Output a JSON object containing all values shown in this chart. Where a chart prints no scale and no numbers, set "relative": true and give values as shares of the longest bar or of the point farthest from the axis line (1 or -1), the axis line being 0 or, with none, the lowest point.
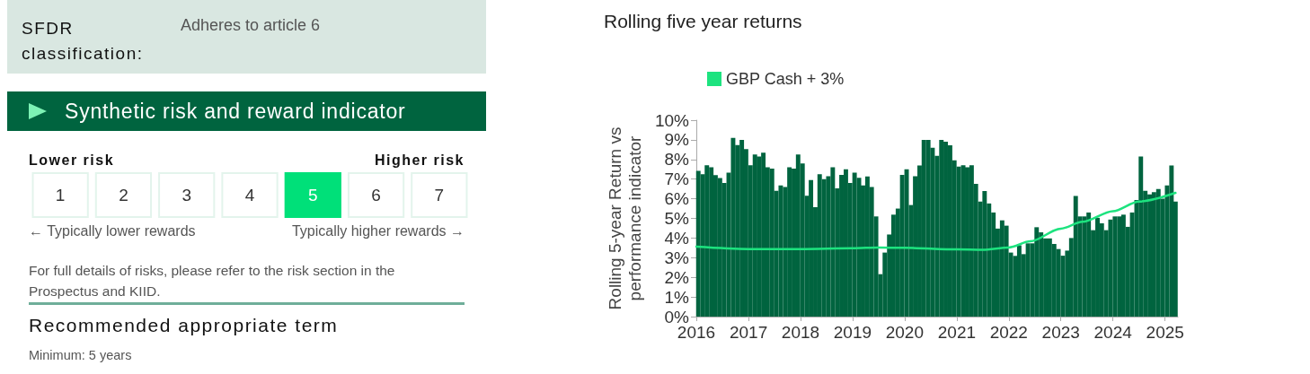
{
  "chart_data": [
    {
      "type": "bar",
      "relative": true,
      "title": "Synthetic risk and reward indicator",
      "categories": [
        "1",
        "2",
        "3",
        "4",
        "5",
        "6",
        "7"
      ],
      "values": [
        1,
        1,
        1,
        1,
        1,
        1,
        1
      ],
      "colors": [
        "#ffffff",
        "#ffffff",
        "#ffffff",
        "#ffffff",
        "#00e079",
        "#ffffff",
        "#ffffff"
      ],
      "annotations": [
        "SFDR classification:",
        "Adheres to article 6",
        "Lower risk",
        "Higher risk",
        "← Typically lower rewards",
        "Typically higher rewards →",
        "For full details of risks, please refer to the risk section in the Prospectus and KIID.",
        "Recommended appropriate term",
        "Minimum: 5 years"
      ]
    },
    {
      "type": "bar",
      "title": "Rolling five year returns",
      "ylabel": "Rolling 5-year Return vs performance indicator",
      "xlim": [
        "2016-01-01",
        "2025-04-01"
      ],
      "xticks": [
        "2016",
        "2017",
        "2018",
        "2019",
        "2020",
        "2021",
        "2022",
        "2023",
        "2024",
        "2025"
      ],
      "ylim": [
        0,
        10
      ],
      "yticks": [
        {
          "value": 0,
          "label": "0%"
        },
        {
          "value": 1,
          "label": "1%"
        },
        {
          "value": 2,
          "label": "2%"
        },
        {
          "value": 3,
          "label": "3%"
        },
        {
          "value": 4,
          "label": "4%"
        },
        {
          "value": 5,
          "label": "5%"
        },
        {
          "value": 6,
          "label": "6%"
        },
        {
          "value": 7,
          "label": "7%"
        },
        {
          "value": 8,
          "label": "8%"
        },
        {
          "value": 9,
          "label": "9%"
        },
        {
          "value": 10,
          "label": "10%"
        }
      ],
      "grid": false,
      "legend": "top",
      "marker": "none",
      "x": [
        "2016-01-15",
        "2016-02-15",
        "2016-03-15",
        "2016-04-15",
        "2016-05-15",
        "2016-06-15",
        "2016-07-15",
        "2016-08-15",
        "2016-09-15",
        "2016-10-15",
        "2016-11-15",
        "2016-12-15",
        "2017-01-15",
        "2017-02-15",
        "2017-03-15",
        "2017-04-15",
        "2017-05-15",
        "2017-06-15",
        "2017-07-15",
        "2017-08-15",
        "2017-09-15",
        "2017-10-15",
        "2017-11-15",
        "2017-12-15",
        "2018-01-15",
        "2018-02-15",
        "2018-03-15",
        "2018-04-15",
        "2018-05-15",
        "2018-06-15",
        "2018-07-15",
        "2018-08-15",
        "2018-09-15",
        "2018-10-15",
        "2018-11-15",
        "2018-12-15",
        "2019-01-15",
        "2019-02-15",
        "2019-03-15",
        "2019-04-15",
        "2019-05-15",
        "2019-06-15",
        "2019-07-15",
        "2019-08-15",
        "2019-09-15",
        "2019-10-15",
        "2019-11-15",
        "2019-12-15",
        "2020-01-15",
        "2020-02-15",
        "2020-03-15",
        "2020-04-15",
        "2020-05-15",
        "2020-06-15",
        "2020-07-15",
        "2020-08-15",
        "2020-09-15",
        "2020-10-15",
        "2020-11-15",
        "2020-12-15",
        "2021-01-15",
        "2021-02-15",
        "2021-03-15",
        "2021-04-15",
        "2021-05-15",
        "2021-06-15",
        "2021-07-15",
        "2021-08-15",
        "2021-09-15",
        "2021-10-15",
        "2021-11-15",
        "2021-12-15",
        "2022-01-15",
        "2022-02-15",
        "2022-03-15",
        "2022-04-15",
        "2022-05-15",
        "2022-06-15",
        "2022-07-15",
        "2022-08-15",
        "2022-09-15",
        "2022-10-15",
        "2022-11-15",
        "2022-12-15",
        "2023-01-15",
        "2023-02-15",
        "2023-03-15",
        "2023-04-15",
        "2023-05-15",
        "2023-06-15",
        "2023-07-15",
        "2023-08-15",
        "2023-09-15",
        "2023-10-15",
        "2023-11-15",
        "2023-12-15",
        "2024-01-15",
        "2024-02-15",
        "2024-03-15",
        "2024-04-15",
        "2024-05-15",
        "2024-06-15",
        "2024-07-15",
        "2024-08-15",
        "2024-09-15",
        "2024-10-15",
        "2024-11-15",
        "2024-12-15",
        "2025-01-15",
        "2025-02-15",
        "2025-03-15"
      ],
      "series": [
        {
          "type": "bar",
          "color": "#00643f",
          "values": [
            7.42,
            7.25,
            7.7,
            7.6,
            7.2,
            7.05,
            6.8,
            7.33,
            9.1,
            8.73,
            9.0,
            8.53,
            7.7,
            8.25,
            8.15,
            8.35,
            7.6,
            7.53,
            6.4,
            6.68,
            6.6,
            7.6,
            7.53,
            8.25,
            7.8,
            6.15,
            6.95,
            5.57,
            7.25,
            7.0,
            7.15,
            7.6,
            6.53,
            7.22,
            7.5,
            6.8,
            7.33,
            7.07,
            6.68,
            7.13,
            6.6,
            5.1,
            2.16,
            3.26,
            4.18,
            5.19,
            5.5,
            7.22,
            7.5,
            5.68,
            7.15,
            7.69,
            9.0,
            9.0,
            8.6,
            8.18,
            9.0,
            8.9,
            8.72,
            7.96,
            7.64,
            7.7,
            7.6,
            7.7,
            6.76,
            5.86,
            6.39,
            5.76,
            5.3,
            4.48,
            4.9,
            4.63,
            3.26,
            3.09,
            3.63,
            3.18,
            3.73,
            3.73,
            4.55,
            4.29,
            3.98,
            3.98,
            3.7,
            3.44,
            3.1,
            3.36,
            4.0,
            6.14,
            5.1,
            5.1,
            5.3,
            4.4,
            5.03,
            4.75,
            4.4,
            4.94,
            5.1,
            5.1,
            5.19,
            4.57,
            5.3,
            5.94,
            8.15,
            6.4,
            6.22,
            6.33,
            6.5,
            6.0,
            6.68,
            7.69,
            5.86
          ]
        },
        {
          "type": "line",
          "name": "GBP Cash + 3%",
          "color": "#1de37f",
          "x": [
            "2016-01-01",
            "2017-01-01",
            "2018-01-01",
            "2019-01-01",
            "2019-07-01",
            "2020-01-01",
            "2021-01-01",
            "2021-07-01",
            "2022-01-01",
            "2022-06-01",
            "2023-01-01",
            "2023-06-01",
            "2024-01-01",
            "2024-07-01",
            "2025-03-15"
          ],
          "values": [
            3.56,
            3.44,
            3.44,
            3.48,
            3.52,
            3.5,
            3.42,
            3.4,
            3.52,
            3.83,
            4.48,
            4.83,
            5.37,
            5.86,
            6.3
          ]
        }
      ]
    }
  ]
}
